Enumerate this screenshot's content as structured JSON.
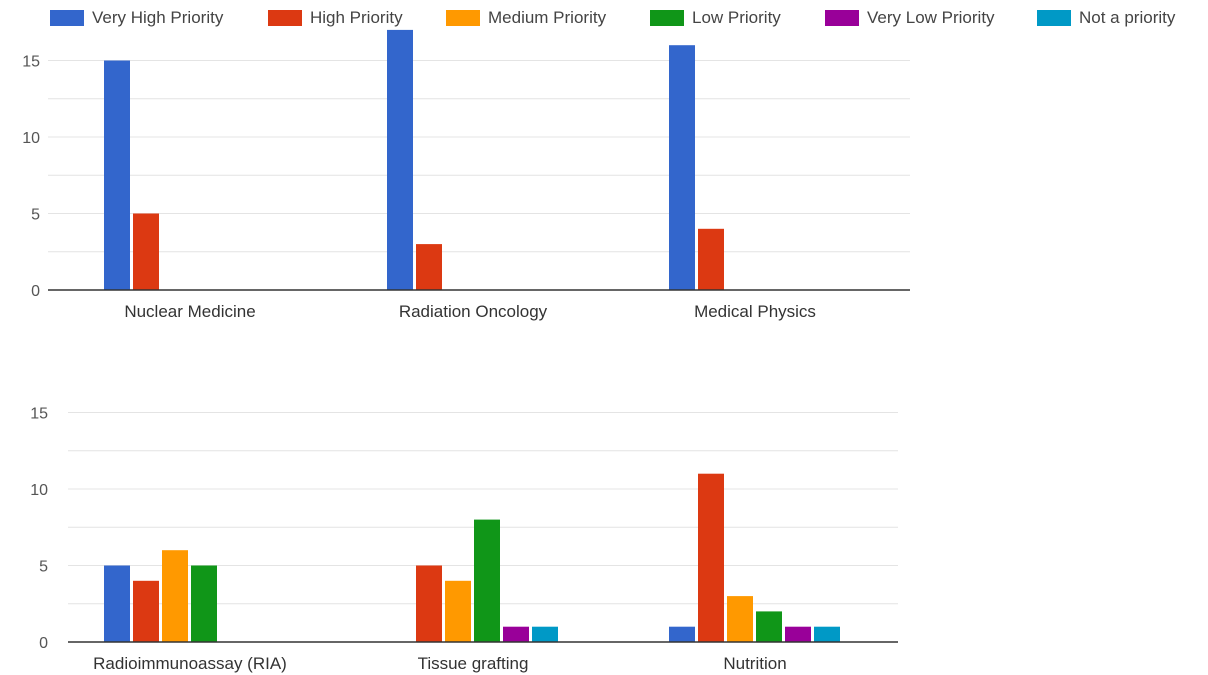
{
  "legend": [
    {
      "name": "Very High Priority",
      "color": "#3366cc"
    },
    {
      "name": "High Priority",
      "color": "#dc3912"
    },
    {
      "name": "Medium Priority",
      "color": "#ff9900"
    },
    {
      "name": "Low Priority",
      "color": "#109618"
    },
    {
      "name": "Very Low Priority",
      "color": "#990099"
    },
    {
      "name": "Not a priority",
      "color": "#0099c6"
    }
  ],
  "chart_data": [
    {
      "type": "bar",
      "categories": [
        "Nuclear Medicine",
        "Radiation Oncology",
        "Medical Physics"
      ],
      "ylim": [
        0,
        17
      ],
      "yticks": [
        "0",
        "5",
        "10",
        "15"
      ],
      "grid": true,
      "legend_position": "top",
      "series": [
        {
          "name": "Very High Priority",
          "color": "#3366cc",
          "values": [
            15,
            17,
            16
          ]
        },
        {
          "name": "High Priority",
          "color": "#dc3912",
          "values": [
            5,
            3,
            4
          ]
        },
        {
          "name": "Medium Priority",
          "color": "#ff9900",
          "values": [
            0,
            0,
            0
          ]
        },
        {
          "name": "Low Priority",
          "color": "#109618",
          "values": [
            0,
            0,
            0
          ]
        },
        {
          "name": "Very Low Priority",
          "color": "#990099",
          "values": [
            0,
            0,
            0
          ]
        },
        {
          "name": "Not a priority",
          "color": "#0099c6",
          "values": [
            0,
            0,
            0
          ]
        }
      ]
    },
    {
      "type": "bar",
      "categories": [
        "Radioimmunoassay (RIA)",
        "Tissue grafting",
        "Nutrition"
      ],
      "ylim": [
        0,
        17
      ],
      "yticks": [
        "0",
        "5",
        "10",
        "15"
      ],
      "grid": true,
      "legend_position": "top",
      "series": [
        {
          "name": "Very High Priority",
          "color": "#3366cc",
          "values": [
            5,
            0,
            1
          ]
        },
        {
          "name": "High Priority",
          "color": "#dc3912",
          "values": [
            4,
            5,
            11
          ]
        },
        {
          "name": "Medium Priority",
          "color": "#ff9900",
          "values": [
            6,
            4,
            3
          ]
        },
        {
          "name": "Low Priority",
          "color": "#109618",
          "values": [
            5,
            8,
            2
          ]
        },
        {
          "name": "Very Low Priority",
          "color": "#990099",
          "values": [
            0,
            1,
            1
          ]
        },
        {
          "name": "Not a priority",
          "color": "#0099c6",
          "values": [
            0,
            1,
            1
          ]
        }
      ]
    }
  ]
}
